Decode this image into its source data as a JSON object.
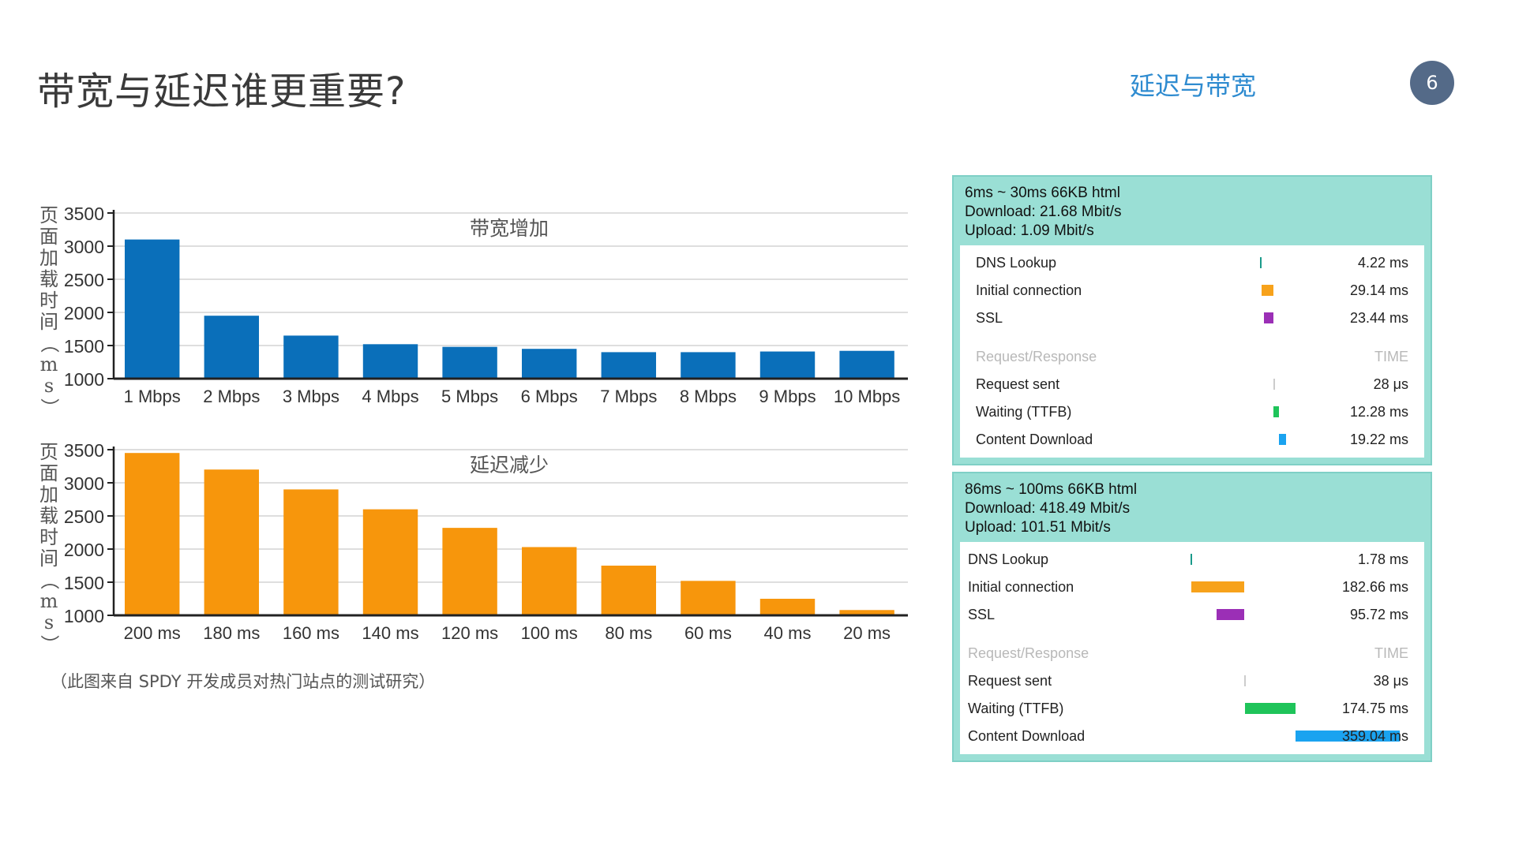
{
  "header": {
    "title": "带宽与延迟谁更重要?",
    "section": "延迟与带宽",
    "page_number": "6"
  },
  "caption": "（此图来自 SPDY 开发成员对热门站点的测试研究）",
  "colors": {
    "bandwidth_bar": "#0a6fba",
    "latency_bar": "#f7960c",
    "panel_bg": "#9adfd5",
    "section_accent": "#2e8bd0",
    "badge": "#546a88"
  },
  "chart_data": [
    {
      "type": "bar",
      "title": "带宽增加",
      "ylabel": "页面加载时间（ms）",
      "ylim": [
        1000,
        3500
      ],
      "yticks": [
        1000,
        1500,
        2000,
        2500,
        3000,
        3500
      ],
      "grid": true,
      "categories": [
        "1 Mbps",
        "2 Mbps",
        "3 Mbps",
        "4 Mbps",
        "5 Mbps",
        "6 Mbps",
        "7 Mbps",
        "8 Mbps",
        "9 Mbps",
        "10 Mbps"
      ],
      "values": [
        3100,
        1950,
        1650,
        1520,
        1480,
        1450,
        1400,
        1400,
        1410,
        1420
      ]
    },
    {
      "type": "bar",
      "title": "延迟减少",
      "ylabel": "页面加载时间（ms）",
      "ylim": [
        1000,
        3500
      ],
      "yticks": [
        1000,
        1500,
        2000,
        2500,
        3000,
        3500
      ],
      "grid": true,
      "categories": [
        "200 ms",
        "180 ms",
        "160 ms",
        "140 ms",
        "120 ms",
        "100 ms",
        "80 ms",
        "60 ms",
        "40 ms",
        "20 ms"
      ],
      "values": [
        3450,
        3200,
        2900,
        2600,
        2320,
        2030,
        1750,
        1520,
        1250,
        1080
      ]
    }
  ],
  "panels": [
    {
      "header": [
        "6ms ~ 30ms 66KB html",
        "Download: 21.68 Mbit/s",
        "Upload: 1.09 Mbit/s"
      ],
      "rows": [
        {
          "label": "DNS Lookup",
          "value": "4.22 ms",
          "color": "#1a9a8a",
          "start": 0.0,
          "width": 0.012
        },
        {
          "label": "Initial connection",
          "value": "29.14 ms",
          "color": "#f7a21b",
          "start": 0.012,
          "width": 0.082
        },
        {
          "label": "SSL",
          "value": "23.44 ms",
          "color": "#9b2fb6",
          "start": 0.027,
          "width": 0.066
        }
      ],
      "subheader": {
        "label": "Request/Response",
        "value": "TIME"
      },
      "subrows": [
        {
          "label": "Request sent",
          "value": "28 μs",
          "color": "#cccccc",
          "start": 0.094,
          "width": 0.003
        },
        {
          "label": "Waiting (TTFB)",
          "value": "12.28 ms",
          "color": "#1fc45a",
          "start": 0.097,
          "width": 0.035
        },
        {
          "label": "Content Download",
          "value": "19.22 ms",
          "color": "#1aa3f0",
          "start": 0.132,
          "width": 0.054
        }
      ]
    },
    {
      "header": [
        "86ms ~ 100ms 66KB html",
        "Download: 418.49 Mbit/s",
        "Upload: 101.51 Mbit/s"
      ],
      "rows": [
        {
          "label": "DNS Lookup",
          "value": "1.78 ms",
          "color": "#1a9a8a",
          "start": 0.0,
          "width": 0.003
        },
        {
          "label": "Initial connection",
          "value": "182.66 ms",
          "color": "#f7a21b",
          "start": 0.003,
          "width": 0.259
        },
        {
          "label": "SSL",
          "value": "95.72 ms",
          "color": "#9b2fb6",
          "start": 0.125,
          "width": 0.136
        }
      ],
      "subheader": {
        "label": "Request/Response",
        "value": "TIME"
      },
      "subrows": [
        {
          "label": "Request sent",
          "value": "38 μs",
          "color": "#cccccc",
          "start": 0.262,
          "width": 0.002
        },
        {
          "label": "Waiting (TTFB)",
          "value": "174.75 ms",
          "color": "#1fc45a",
          "start": 0.264,
          "width": 0.248
        },
        {
          "label": "Content Download",
          "value": "359.04 ms",
          "color": "#1aa3f0",
          "start": 0.512,
          "width": 0.509
        }
      ]
    }
  ]
}
